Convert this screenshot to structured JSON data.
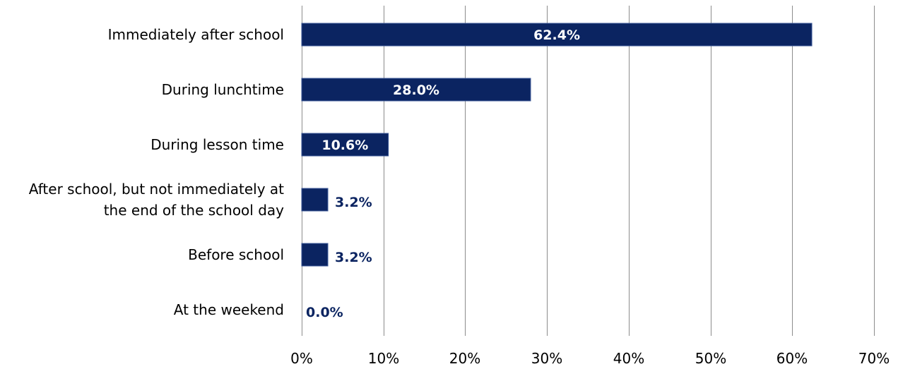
{
  "chart_data": {
    "type": "bar",
    "orientation": "horizontal",
    "title": "",
    "xlabel": "",
    "ylabel": "",
    "categories": [
      [
        "Immediately after school"
      ],
      [
        "During lunchtime"
      ],
      [
        "During lesson time"
      ],
      [
        "After school, but not immediately at",
        "the end of the school day"
      ],
      [
        "Before school"
      ],
      [
        "At the weekend"
      ]
    ],
    "values": [
      62.4,
      28.0,
      10.6,
      3.2,
      3.2,
      0.0
    ],
    "value_labels": [
      "62.4%",
      "28.0%",
      "10.6%",
      "3.2%",
      "3.2%",
      "0.0%"
    ],
    "xlim": [
      0,
      70
    ],
    "xticks": [
      0,
      10,
      20,
      30,
      40,
      50,
      60,
      70
    ],
    "xtick_labels": [
      "0%",
      "10%",
      "20%",
      "30%",
      "40%",
      "50%",
      "60%",
      "70%"
    ],
    "grid": true,
    "legend": "none",
    "colors": {
      "bar": "#0B2461",
      "bar_edge": "#3D5A99",
      "grid": "#8C8C8C",
      "label_inside": "#FFFFFF",
      "label_outside": "#0B2461"
    }
  }
}
